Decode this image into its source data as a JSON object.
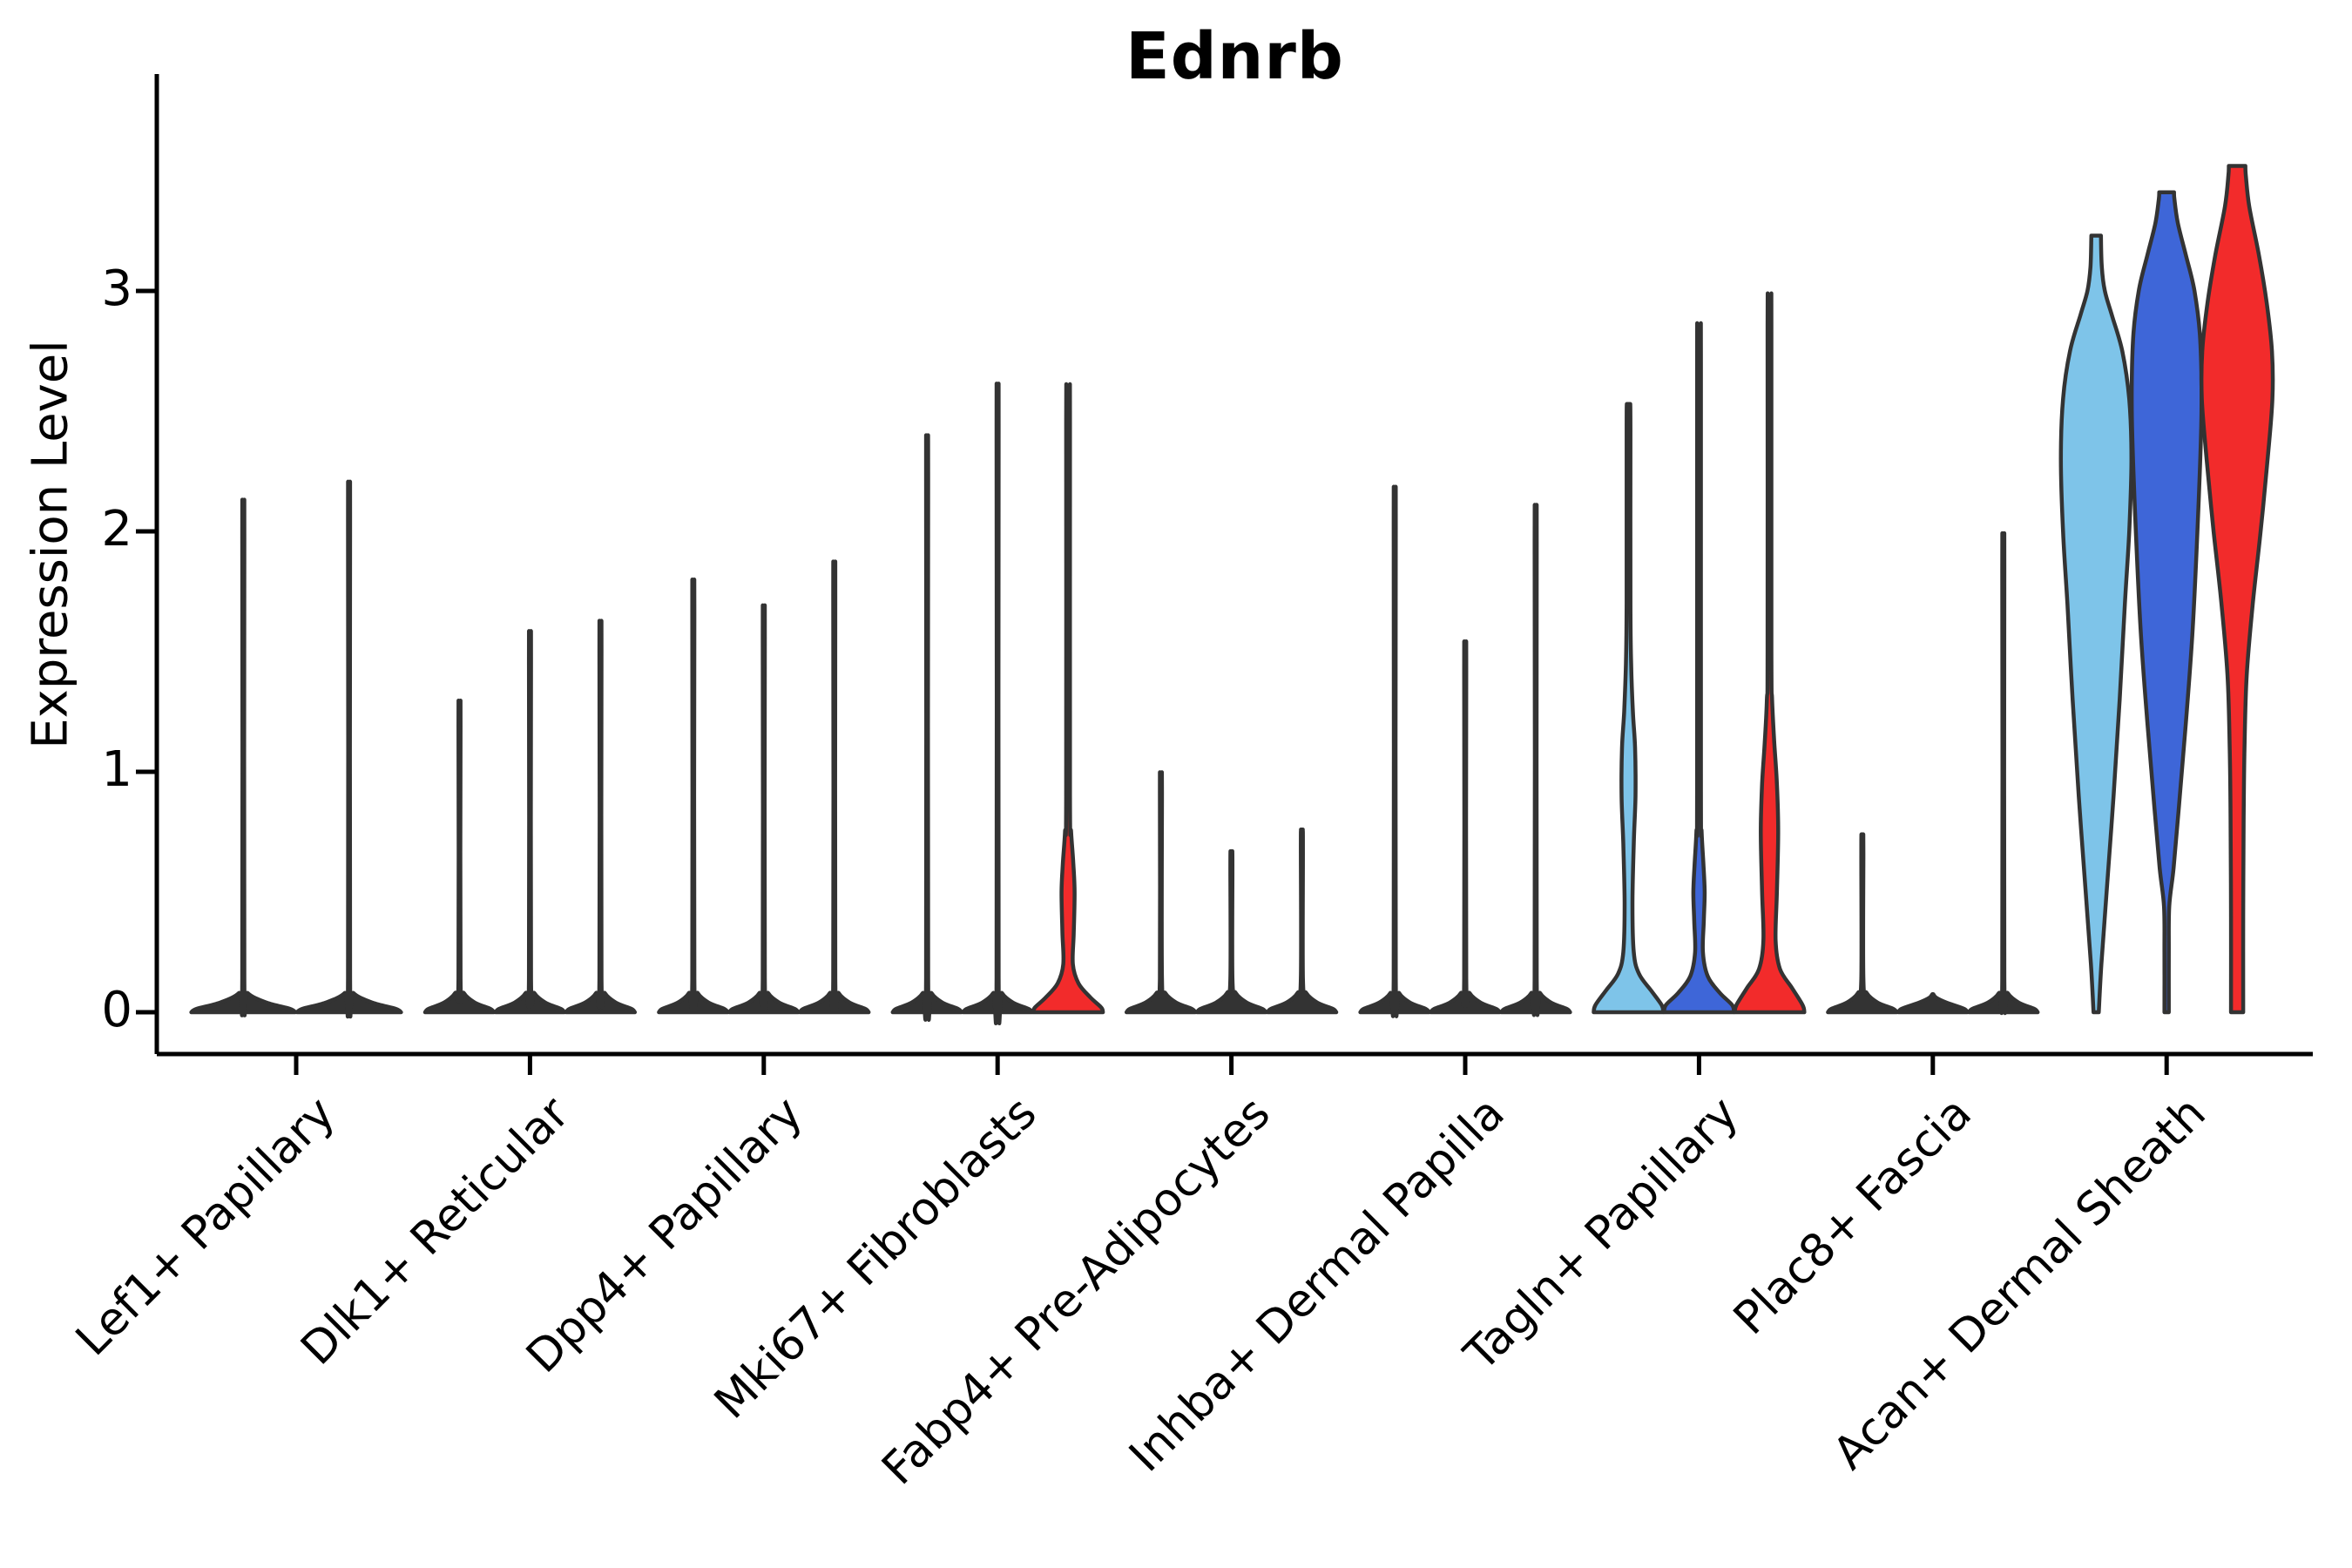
{
  "title": "Ednrb",
  "y_axis": {
    "label": "Expression Level",
    "ticks": [
      "0",
      "1",
      "2",
      "3"
    ]
  },
  "colors": {
    "outline": "#333333",
    "light_blue": "#7EC4E9",
    "blue": "#3E66D8",
    "red": "#F22B2B",
    "text": "#000000",
    "background": "#FFFFFF"
  },
  "chart_data": {
    "type": "violin",
    "title": "Ednrb",
    "xlabel": "",
    "ylabel": "Expression Level",
    "y_ticks": [
      0,
      1,
      2,
      3
    ],
    "ylim": [
      -0.17,
      3.9
    ],
    "grid": false,
    "legend": "none",
    "note": "Stacked violin plot of Ednrb expression per cluster; three sample violins (light blue, blue, red) per cluster where present. Most violins collapse to a baseline pancake with a thin density spike whose tip is the max expression.",
    "categories": [
      "Lef1+ Papillary",
      "Dlk1+ Reticular",
      "Dpp4+ Papillary",
      "Mki67+ Fibroblasts",
      "Fabp4+ Pre-Adipocytes",
      "Inhba+ Dermal Papilla",
      "Tagln+ Papillary",
      "Plac8+ Fascia",
      "Acan+ Dermal Sheath"
    ],
    "groups": [
      {
        "category": "Lef1+ Papillary",
        "violins": [
          {
            "shape": "spike",
            "max": 2.05,
            "fill": "#333333"
          },
          {
            "shape": "spike",
            "max": 2.12,
            "fill": "#333333"
          }
        ]
      },
      {
        "category": "Dlk1+ Reticular",
        "violins": [
          {
            "shape": "spike",
            "max": 1.27,
            "fill": "#333333"
          },
          {
            "shape": "spike",
            "max": 1.54,
            "fill": "#333333"
          },
          {
            "shape": "spike",
            "max": 1.58,
            "fill": "#333333"
          }
        ]
      },
      {
        "category": "Dpp4+ Papillary",
        "violins": [
          {
            "shape": "spike",
            "max": 1.74,
            "fill": "#333333"
          },
          {
            "shape": "spike",
            "max": 1.64,
            "fill": "#333333"
          },
          {
            "shape": "spike",
            "max": 1.81,
            "fill": "#333333"
          }
        ]
      },
      {
        "category": "Mki67+ Fibroblasts",
        "violins": [
          {
            "shape": "spike",
            "max": 2.3,
            "fill": "#333333"
          },
          {
            "shape": "spike",
            "max": 2.5,
            "fill": "#333333"
          },
          {
            "shape": "profile",
            "max": 2.58,
            "fill": "#F22B2B",
            "profile": [
              [
                0,
                40
              ],
              [
                0.02,
                38
              ],
              [
                0.06,
                26
              ],
              [
                0.12,
                12
              ],
              [
                0.2,
                5.5
              ],
              [
                0.33,
                6.5
              ],
              [
                0.5,
                7.5
              ],
              [
                0.62,
                6
              ],
              [
                0.75,
                3.5
              ],
              [
                0.9,
                2.2
              ],
              [
                2.45,
                2.2
              ],
              [
                2.58,
                2
              ]
            ]
          }
        ]
      },
      {
        "category": "Fabp4+ Pre-Adipocytes",
        "violins": [
          {
            "shape": "spike",
            "max": 0.99,
            "fill": "#333333"
          },
          {
            "shape": "spike",
            "max": 0.67,
            "fill": "#333333"
          },
          {
            "shape": "spike",
            "max": 0.76,
            "fill": "#333333"
          }
        ]
      },
      {
        "category": "Inhba+ Dermal Papilla",
        "violins": [
          {
            "shape": "spike",
            "max": 2.1,
            "fill": "#333333"
          },
          {
            "shape": "spike",
            "max": 1.5,
            "fill": "#333333"
          },
          {
            "shape": "spike",
            "max": 2.03,
            "fill": "#333333"
          }
        ]
      },
      {
        "category": "Tagln+ Papillary",
        "violins": [
          {
            "shape": "profile",
            "max": 2.53,
            "fill": "#7EC4E9",
            "profile": [
              [
                0,
                40
              ],
              [
                0.03,
                38
              ],
              [
                0.09,
                26
              ],
              [
                0.16,
                12
              ],
              [
                0.25,
                6
              ],
              [
                0.45,
                4.5
              ],
              [
                0.7,
                6
              ],
              [
                0.9,
                8
              ],
              [
                1.1,
                7.5
              ],
              [
                1.25,
                5
              ],
              [
                1.45,
                3
              ],
              [
                1.7,
                2.2
              ],
              [
                2.42,
                2.2
              ],
              [
                2.53,
                2
              ]
            ]
          },
          {
            "shape": "profile",
            "max": 2.8,
            "fill": "#3E66D8",
            "profile": [
              [
                0,
                40
              ],
              [
                0.03,
                38
              ],
              [
                0.08,
                24
              ],
              [
                0.15,
                10
              ],
              [
                0.25,
                4.5
              ],
              [
                0.38,
                5.5
              ],
              [
                0.5,
                6.5
              ],
              [
                0.62,
                5
              ],
              [
                0.75,
                3
              ],
              [
                0.92,
                2.2
              ],
              [
                2.7,
                2.2
              ],
              [
                2.8,
                2
              ]
            ]
          },
          {
            "shape": "profile",
            "max": 2.96,
            "fill": "#F22B2B",
            "profile": [
              [
                0,
                40
              ],
              [
                0.03,
                38
              ],
              [
                0.1,
                26
              ],
              [
                0.18,
                12
              ],
              [
                0.3,
                7
              ],
              [
                0.5,
                8.5
              ],
              [
                0.75,
                10
              ],
              [
                0.95,
                8.5
              ],
              [
                1.12,
                5.5
              ],
              [
                1.3,
                3
              ],
              [
                1.5,
                2.2
              ],
              [
                2.85,
                2.2
              ],
              [
                2.96,
                2
              ]
            ]
          }
        ]
      },
      {
        "category": "Plac8+ Fascia",
        "violins": [
          {
            "shape": "spike",
            "max": 0.74,
            "fill": "#333333"
          },
          {
            "shape": "flat",
            "max": 0.0,
            "fill": "#333333"
          },
          {
            "shape": "spike",
            "max": 1.92,
            "fill": "#333333"
          }
        ]
      },
      {
        "category": "Acan+ Dermal Sheath",
        "violins": [
          {
            "shape": "profile",
            "max": 3.23,
            "fill": "#7EC4E9",
            "profile": [
              [
                0,
                3
              ],
              [
                0.2,
                6
              ],
              [
                0.5,
                12
              ],
              [
                0.9,
                20
              ],
              [
                1.3,
                27
              ],
              [
                1.7,
                33
              ],
              [
                2.0,
                38
              ],
              [
                2.3,
                40.5
              ],
              [
                2.55,
                38
              ],
              [
                2.75,
                30
              ],
              [
                2.9,
                18
              ],
              [
                3.0,
                10
              ],
              [
                3.1,
                6.5
              ],
              [
                3.23,
                5.5
              ]
            ]
          },
          {
            "shape": "profile",
            "max": 3.41,
            "fill": "#3E66D8",
            "profile": [
              [
                0,
                2.5
              ],
              [
                0.25,
                2.5
              ],
              [
                0.44,
                3
              ],
              [
                0.6,
                8
              ],
              [
                0.85,
                14
              ],
              [
                1.2,
                22
              ],
              [
                1.6,
                30
              ],
              [
                2.1,
                36.5
              ],
              [
                2.5,
                40
              ],
              [
                2.8,
                38.5
              ],
              [
                3.0,
                32
              ],
              [
                3.15,
                22
              ],
              [
                3.28,
                13
              ],
              [
                3.38,
                9
              ],
              [
                3.41,
                8.5
              ]
            ]
          },
          {
            "shape": "profile",
            "max": 3.52,
            "fill": "#F22B2B",
            "profile": [
              [
                0,
                7
              ],
              [
                0.4,
                7
              ],
              [
                0.8,
                7.5
              ],
              [
                1.1,
                8.5
              ],
              [
                1.4,
                11
              ],
              [
                1.7,
                18
              ],
              [
                2.0,
                27
              ],
              [
                2.3,
                35
              ],
              [
                2.55,
                40.5
              ],
              [
                2.75,
                40
              ],
              [
                2.95,
                34
              ],
              [
                3.15,
                25
              ],
              [
                3.35,
                14
              ],
              [
                3.48,
                10
              ],
              [
                3.52,
                9.5
              ]
            ]
          }
        ]
      }
    ]
  }
}
